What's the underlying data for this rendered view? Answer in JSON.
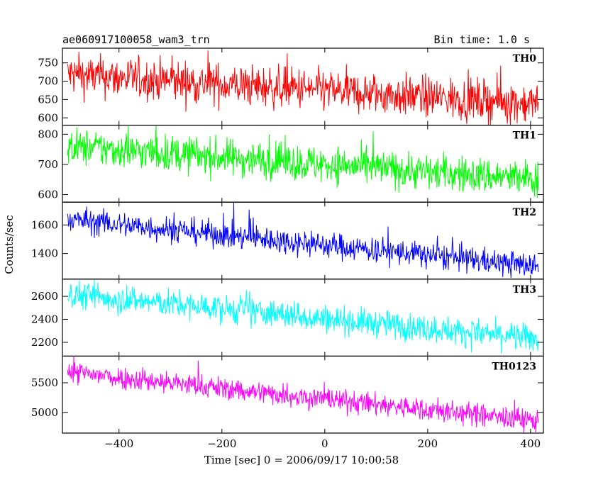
{
  "header": {
    "title": "ae060917100058_wam3_trn",
    "bin_time": "Bin time: 1.0 s"
  },
  "axes": {
    "xlabel": "Time [sec] 0 = 2006/09/17 10:00:58",
    "ylabel": "Counts/sec"
  },
  "chart_data": {
    "type": "line",
    "xlim": [
      -510,
      425
    ],
    "x_ticks": [
      -400,
      -200,
      0,
      200,
      400
    ],
    "x_tick_labels": [
      "−400",
      "−200",
      "0",
      "200",
      "400"
    ],
    "x_range": [
      -500,
      415
    ],
    "grid": false,
    "panels": [
      {
        "name": "TH0",
        "color": "#ff0000",
        "ylim": [
          580,
          790
        ],
        "yticks": [
          600,
          650,
          700,
          750
        ],
        "trend": [
          718,
          638
        ],
        "noise": 28
      },
      {
        "name": "TH1",
        "color": "#00ff00",
        "ylim": [
          575,
          830
        ],
        "yticks": [
          600,
          700,
          800
        ],
        "trend": [
          760,
          650
        ],
        "noise": 30
      },
      {
        "name": "TH2",
        "color": "#0000ff",
        "ylim": [
          1220,
          1760
        ],
        "yticks": [
          1400,
          1600
        ],
        "trend": [
          1640,
          1310
        ],
        "noise": 45
      },
      {
        "name": "TH3",
        "color": "#00ffff",
        "ylim": [
          2080,
          2750
        ],
        "yticks": [
          2200,
          2400,
          2600
        ],
        "trend": [
          2620,
          2230
        ],
        "noise": 60
      },
      {
        "name": "TH0123",
        "color": "#ff00ff",
        "ylim": [
          4650,
          5950
        ],
        "yticks": [
          5000,
          5500
        ],
        "trend": [
          5680,
          4850
        ],
        "noise": 95
      }
    ]
  }
}
